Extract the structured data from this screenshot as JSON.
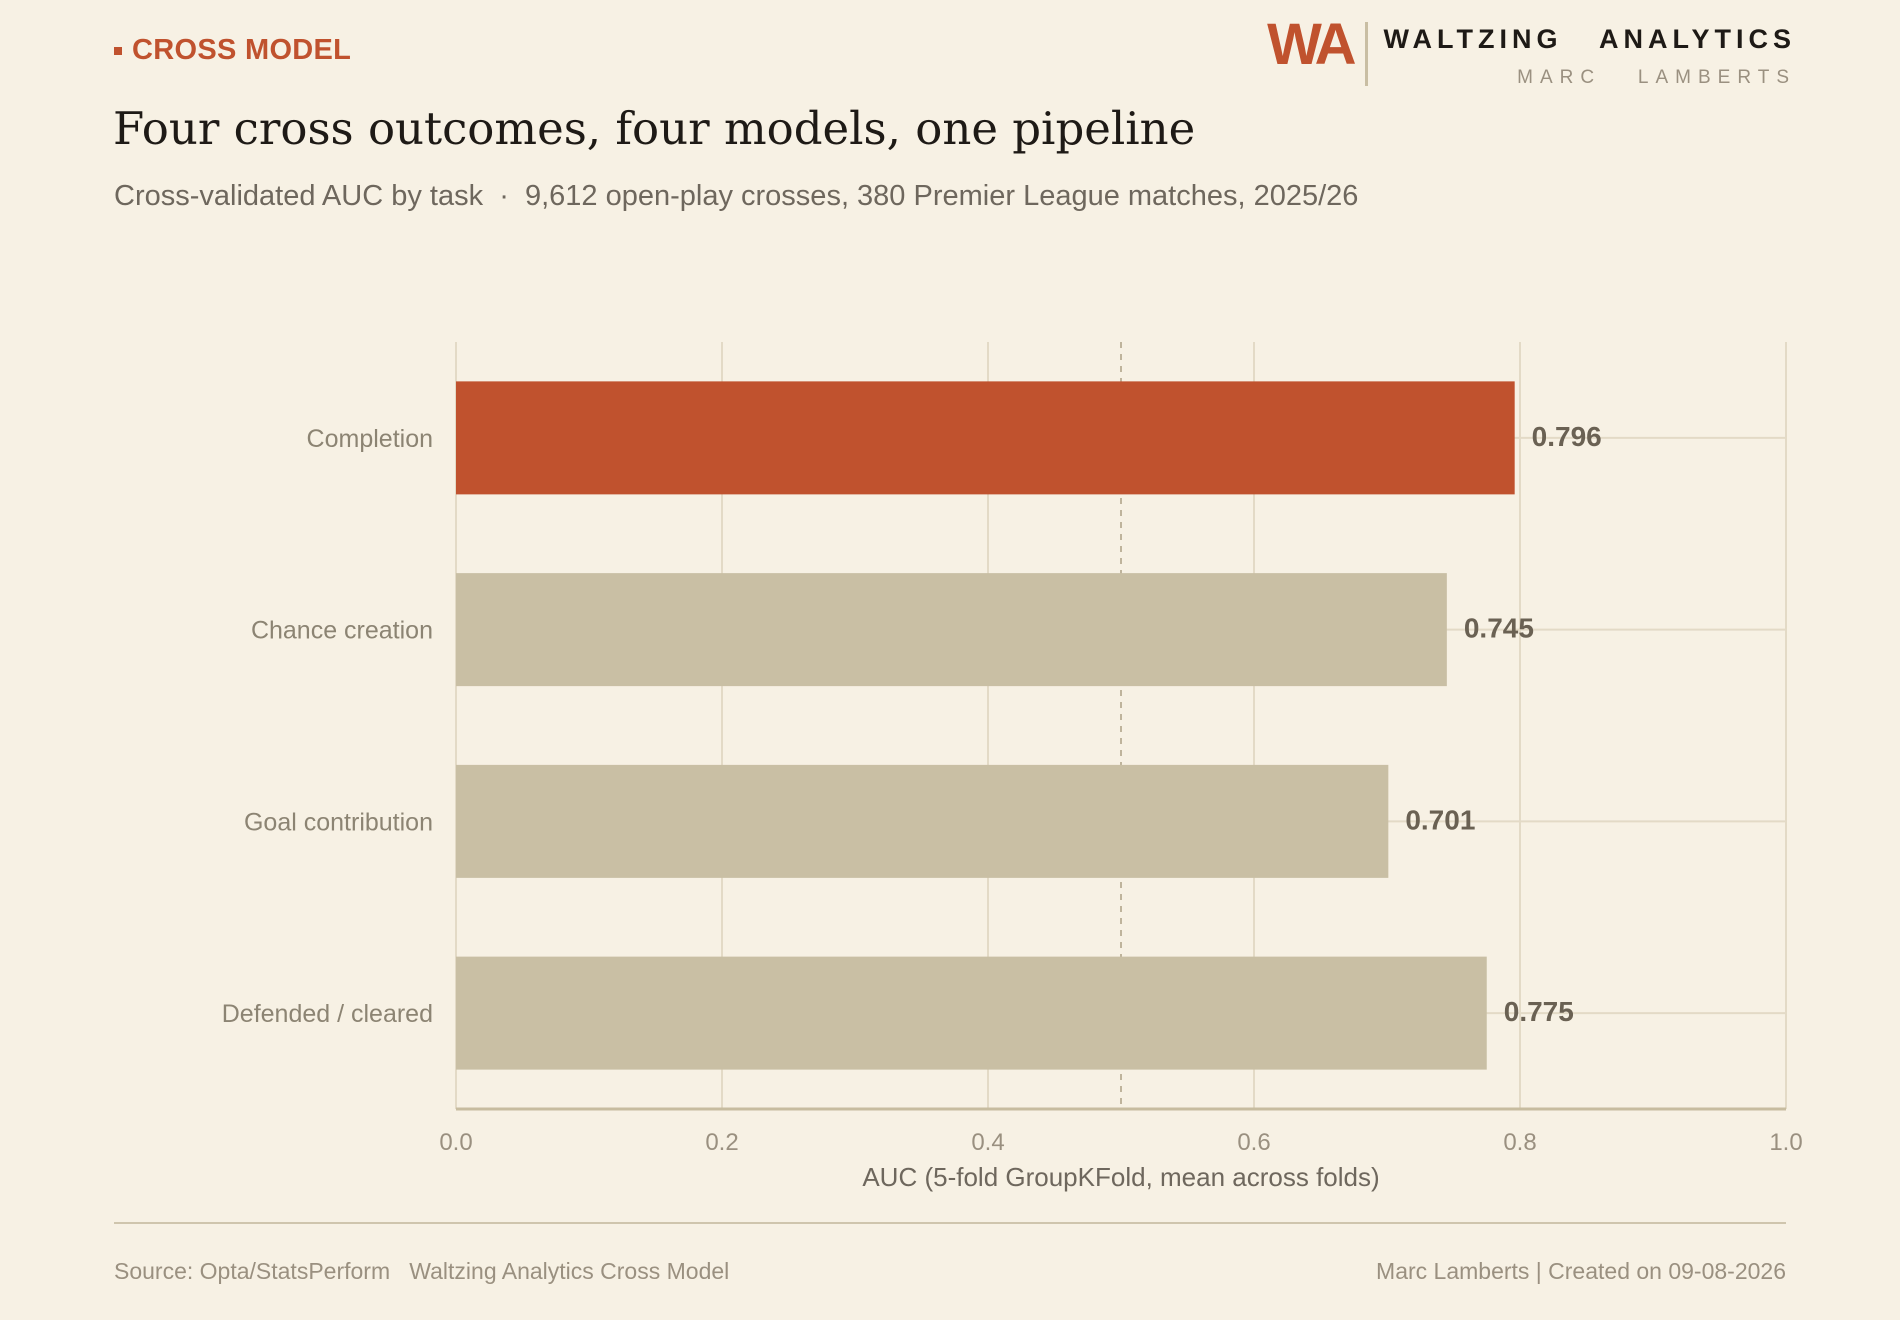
{
  "kicker": "CROSS MODEL",
  "brand": {
    "logo": "WA",
    "name": "WALTZING   ANALYTICS",
    "author": "MARC   LAMBERTS"
  },
  "title": "Four cross outcomes, four models, one pipeline",
  "subtitle": "Cross-validated AUC by task  ·  9,612 open-play crosses, 380 Premier League matches, 2025/26",
  "footer": {
    "source": "Source: Opta/StatsPerform   Waltzing Analytics Cross Model",
    "credit": "Marc Lamberts | Created on 09-08-2026"
  },
  "colors": {
    "highlight": "#c0522e",
    "muted_bar": "#c9bfa4",
    "background": "#f7f1e4",
    "reference_line": "#bfb49c"
  },
  "chart_data": {
    "type": "bar",
    "orientation": "horizontal",
    "categories": [
      "Completion",
      "Chance creation",
      "Goal contribution",
      "Defended / cleared"
    ],
    "values": [
      0.796,
      0.745,
      0.701,
      0.775
    ],
    "value_labels": [
      "0.796",
      "0.745",
      "0.701",
      "0.775"
    ],
    "highlighted_category": "Completion",
    "xlabel": "AUC (5-fold GroupKFold, mean across folds)",
    "ylabel": "",
    "xlim": [
      0.0,
      1.0
    ],
    "xticks": [
      0.0,
      0.2,
      0.4,
      0.6,
      0.8,
      1.0
    ],
    "xtick_labels": [
      "0.0",
      "0.2",
      "0.4",
      "0.6",
      "0.8",
      "1.0"
    ],
    "reference_line": 0.5,
    "reference_line_style": "dashed",
    "grid": true
  }
}
